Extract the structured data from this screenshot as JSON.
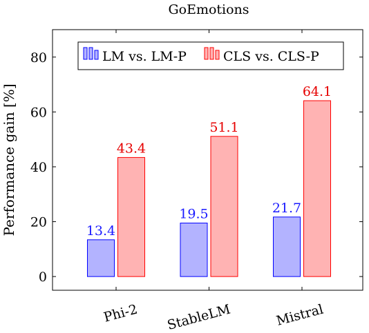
{
  "chart_data": {
    "type": "bar",
    "title": "GoEmotions",
    "xlabel": "",
    "ylabel": "Performance gain [%]",
    "categories": [
      "Phi-2",
      "StableLM",
      "Mistral"
    ],
    "series": [
      {
        "name": "LM vs. LM-P",
        "values": [
          13.4,
          19.5,
          21.7
        ],
        "fill": "#b3b3ff",
        "stroke": "#0000ff",
        "label_color": "#1a1aff"
      },
      {
        "name": "CLS vs. CLS-P",
        "values": [
          43.4,
          51.1,
          64.1
        ],
        "fill": "#ffb3b3",
        "stroke": "#ff0000",
        "label_color": "#e60000"
      }
    ],
    "data_labels": [
      "13.4",
      "19.5",
      "21.7",
      "43.4",
      "51.1",
      "64.1"
    ],
    "ylim": [
      -5,
      90
    ],
    "yticks": [
      0,
      20,
      40,
      60,
      80
    ],
    "grid": false,
    "legend_position": "top"
  }
}
